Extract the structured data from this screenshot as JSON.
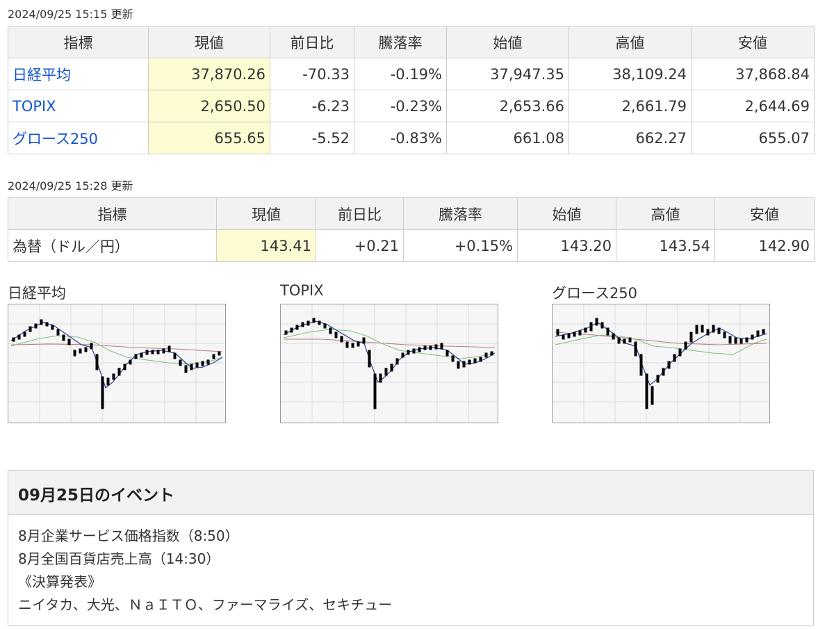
{
  "table1": {
    "updated": "2024/09/25 15:15 更新",
    "headers": [
      "指標",
      "現値",
      "前日比",
      "騰落率",
      "始値",
      "高値",
      "安値"
    ],
    "rows": [
      {
        "name": "日経平均",
        "current": "37,870.26",
        "change": "-70.33",
        "rate": "-0.19%",
        "open": "37,947.35",
        "high": "38,109.24",
        "low": "37,868.84"
      },
      {
        "name": "TOPIX",
        "current": "2,650.50",
        "change": "-6.23",
        "rate": "-0.23%",
        "open": "2,653.66",
        "high": "2,661.79",
        "low": "2,644.69"
      },
      {
        "name": "グロース250",
        "current": "655.65",
        "change": "-5.52",
        "rate": "-0.83%",
        "open": "661.08",
        "high": "662.27",
        "low": "655.07"
      }
    ]
  },
  "table2": {
    "updated": "2024/09/25 15:28 更新",
    "headers": [
      "指標",
      "現値",
      "前日比",
      "騰落率",
      "始値",
      "高値",
      "安値"
    ],
    "rows": [
      {
        "name": "為替（ドル／円）",
        "current": "143.41",
        "change": "+0.21",
        "rate": "+0.15%",
        "open": "143.20",
        "high": "143.54",
        "low": "142.90"
      }
    ]
  },
  "charts": [
    {
      "title": "日経平均"
    },
    {
      "title": "TOPIX"
    },
    {
      "title": "グロース250"
    }
  ],
  "events": {
    "title": "09月25日のイベント",
    "lines": [
      "8月企業サービス価格指数（8:50）",
      "8月全国百貨店売上高（14:30）",
      "《決算発表》",
      "ニイタカ、大光、ＮａＩＴＯ、ファーマライズ、セキチュー"
    ]
  },
  "colors": {
    "down": "#1a3fc0",
    "up": "#d02020",
    "link": "#1155cc",
    "current_bg": "#fdfbd2"
  }
}
